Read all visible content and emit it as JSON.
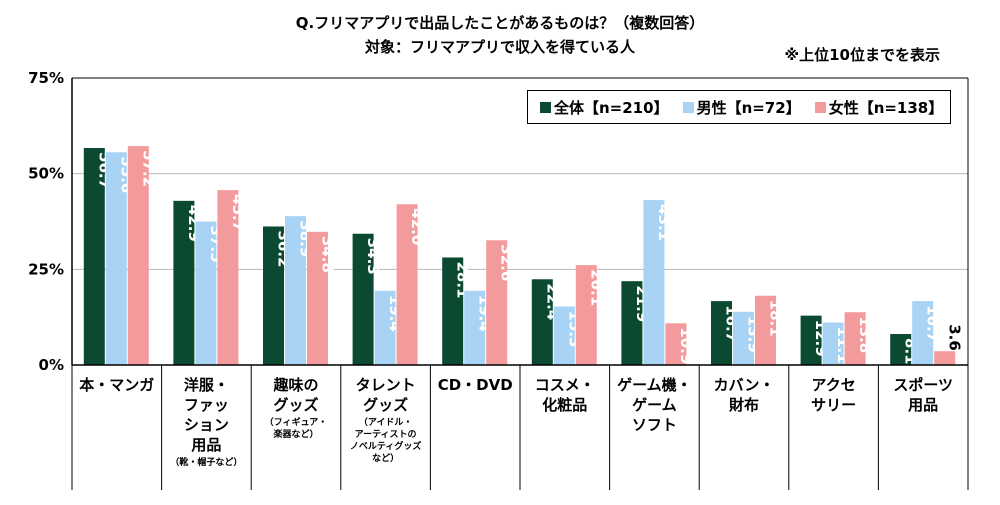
{
  "header": {
    "title": "Q.フリマアプリで出品したことがあるものは？（複数回答）",
    "subtitle": "対象：フリマアプリで収入を得ている人",
    "note": "※上位10位までを表示"
  },
  "colors": {
    "all": "#0b4a30",
    "male": "#a9d3f5",
    "female": "#f39a9c",
    "grid": "#b8b8b8",
    "axis": "#000000"
  },
  "chart_data": {
    "type": "bar",
    "ylim": [
      0,
      75
    ],
    "yticks": [
      "0%",
      "25%",
      "50%",
      "75%"
    ],
    "ytick_values": [
      0,
      25,
      50,
      75
    ],
    "grid": true,
    "legend_position": "top-right",
    "legend": [
      "全体【n=210】",
      "男性【n=72】",
      "女性【n=138】"
    ],
    "categories": [
      {
        "label": "本・マンガ",
        "sub": ""
      },
      {
        "label": "洋服・\nファッ\nション\n用品",
        "sub": "（靴・帽子など）"
      },
      {
        "label": "趣味の\nグッズ",
        "sub": "（フィギュア・\n楽器など）"
      },
      {
        "label": "タレント\nグッズ",
        "sub": "（アイドル・\nアーティストの\nノベルティグッズ\nなど）"
      },
      {
        "label": "CD・DVD",
        "sub": ""
      },
      {
        "label": "コスメ・\n化粧品",
        "sub": ""
      },
      {
        "label": "ゲーム機・\nゲーム\nソフト",
        "sub": ""
      },
      {
        "label": "カバン・\n財布",
        "sub": ""
      },
      {
        "label": "アクセ\nサリー",
        "sub": ""
      },
      {
        "label": "スポーツ\n用品",
        "sub": ""
      }
    ],
    "series": [
      {
        "name": "全体【n=210】",
        "values": [
          56.7,
          42.9,
          36.2,
          34.3,
          28.1,
          22.4,
          21.9,
          16.7,
          12.9,
          8.1
        ],
        "labels": [
          "56.7",
          "42.9",
          "36.2",
          "34.3",
          "28.1",
          "22.4",
          "21.9",
          "16.7",
          "12.9",
          "8.1"
        ]
      },
      {
        "name": "男性【n=72】",
        "values": [
          55.6,
          37.5,
          38.9,
          19.4,
          19.4,
          15.3,
          43.1,
          13.9,
          11.1,
          16.7
        ],
        "labels": [
          "55.6",
          "37.5",
          "38.9",
          "19.4",
          "19.4",
          "15.3",
          "43.1",
          "13.9",
          "11.1",
          "16.7"
        ]
      },
      {
        "name": "女性【n=138】",
        "values": [
          57.2,
          45.7,
          34.8,
          42.0,
          32.6,
          26.1,
          10.9,
          18.1,
          13.8,
          3.6
        ],
        "labels": [
          "57.2",
          "45.7",
          "34.8",
          "42.0",
          "32.6",
          "26.1",
          "10.9",
          "18.1",
          "13.8",
          "3.6"
        ]
      }
    ]
  }
}
